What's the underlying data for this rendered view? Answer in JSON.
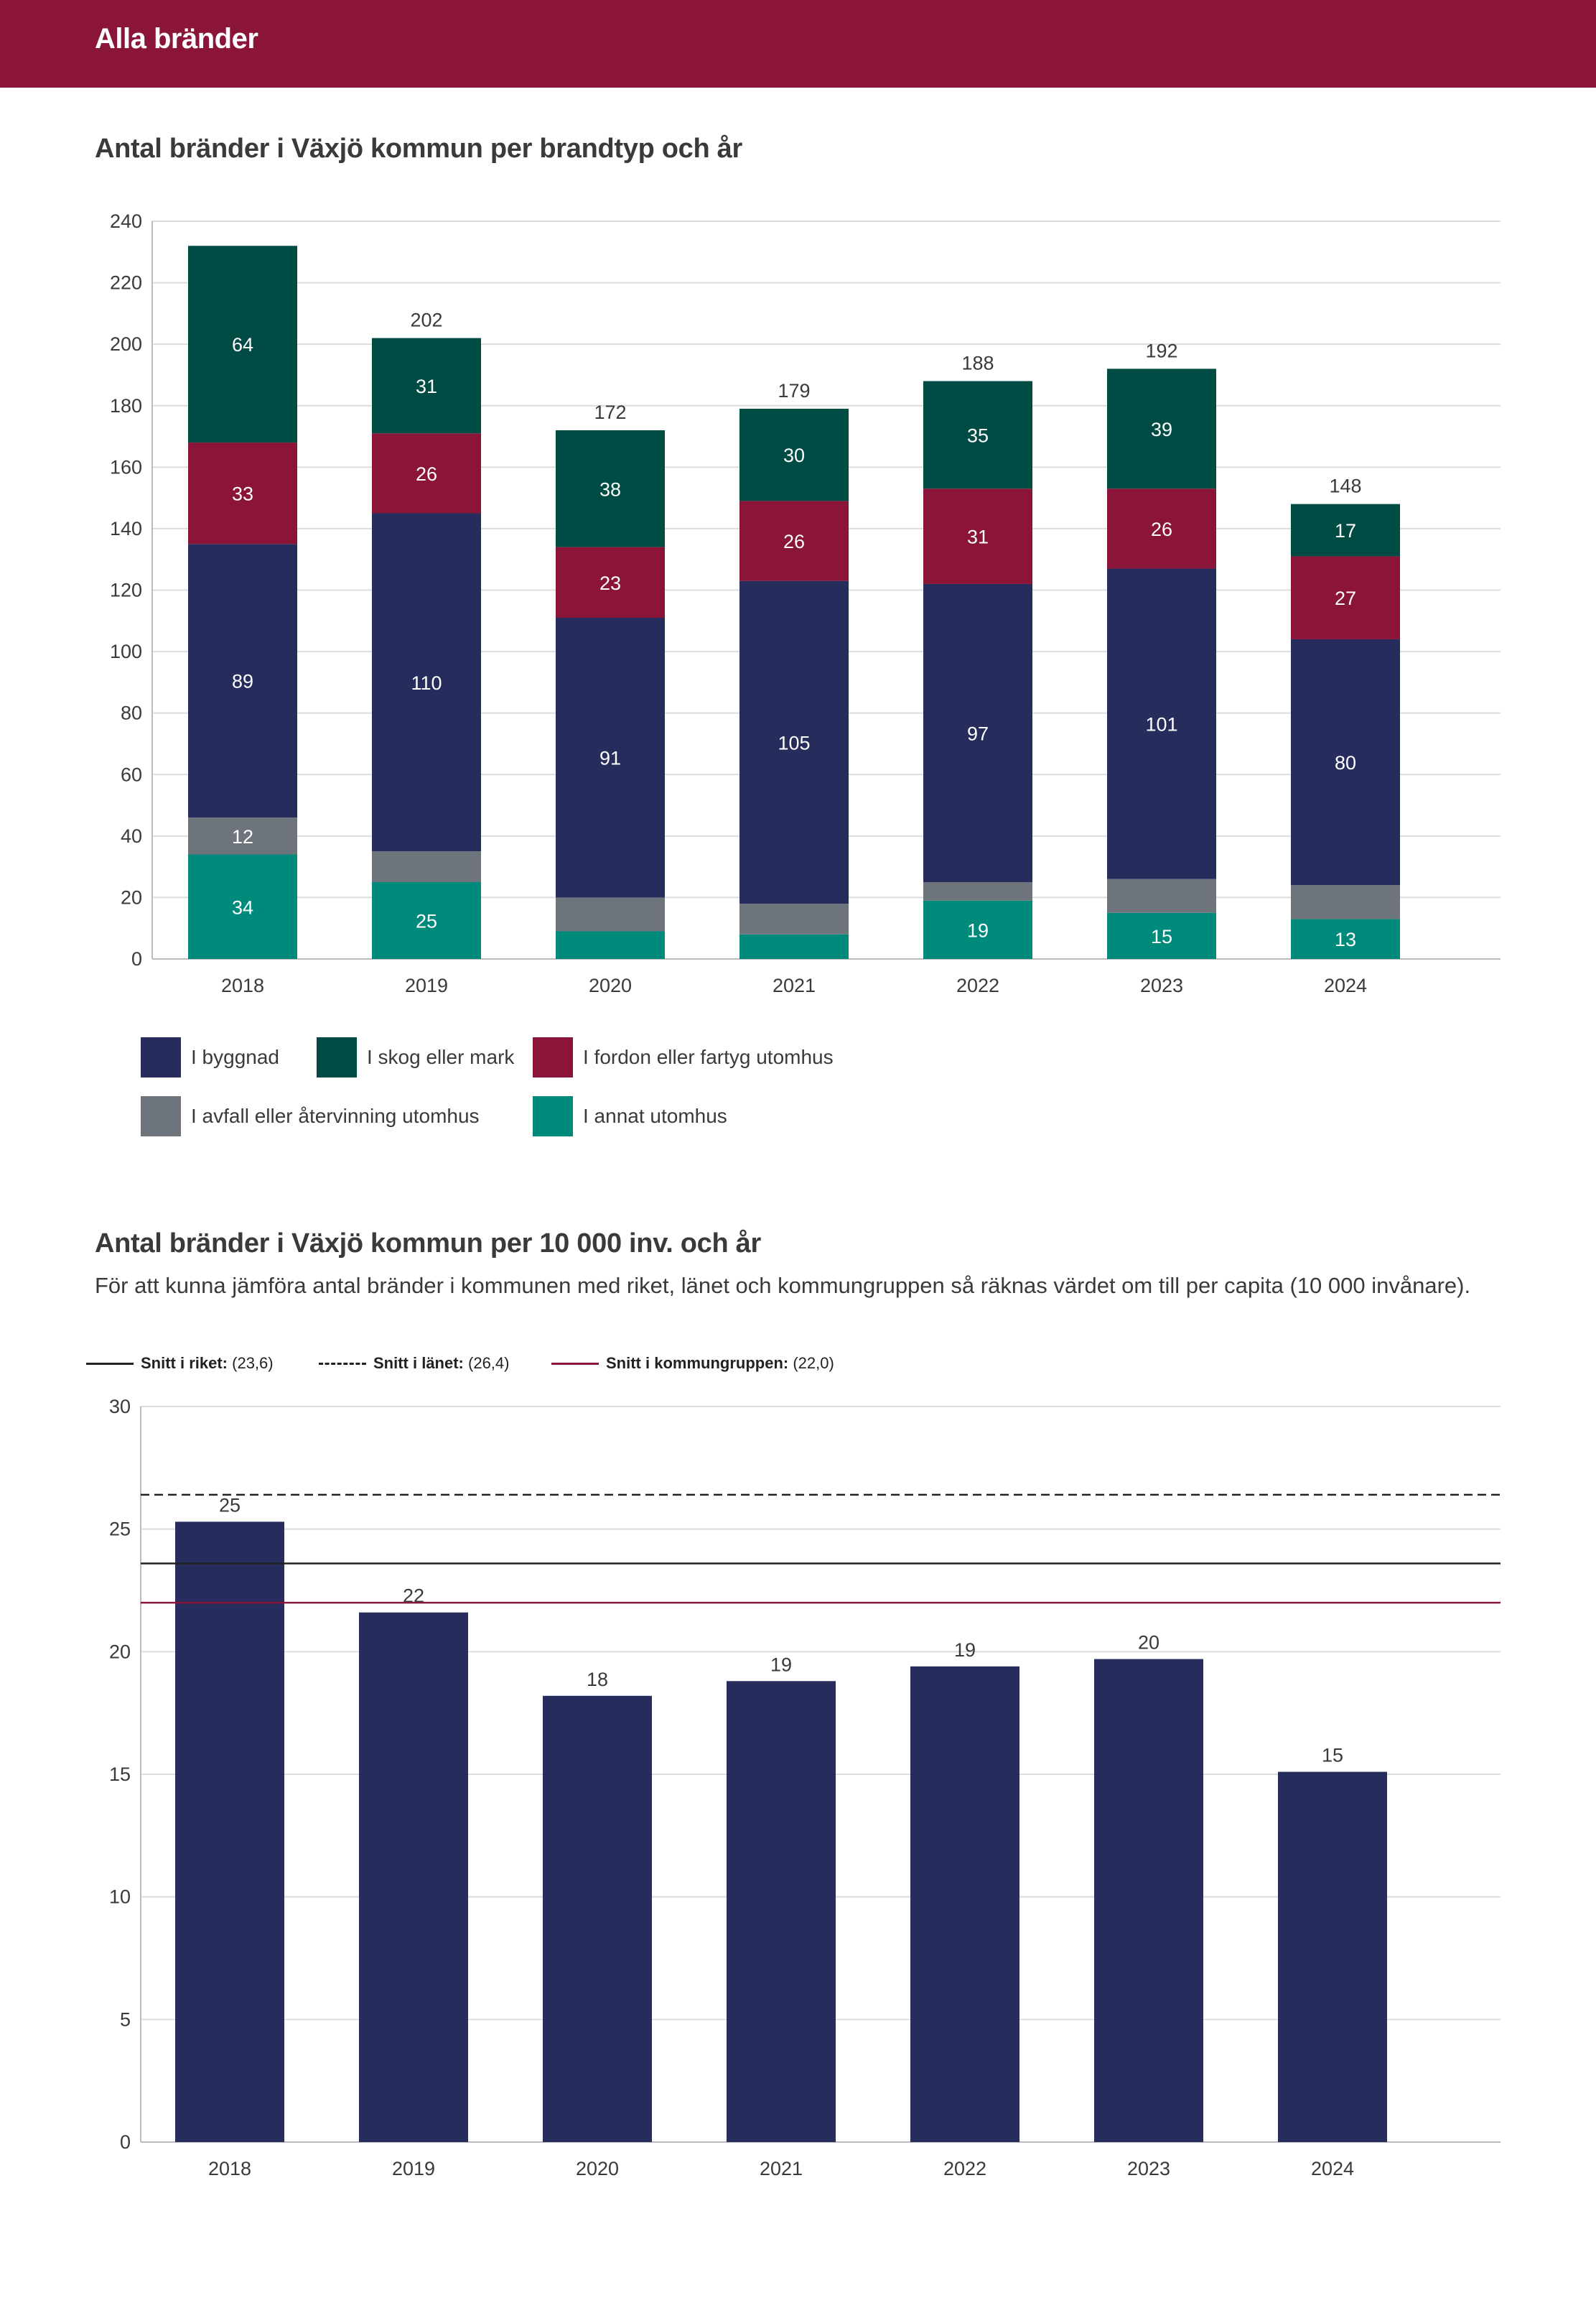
{
  "header": {
    "title": "Alla bränder"
  },
  "chart1": {
    "title": "Antal bränder i Växjö kommun per brandtyp och år"
  },
  "chart2": {
    "title": "Antal bränder i Växjö kommun per 10 000 inv. och år",
    "subtitle": "För att kunna jämföra antal bränder i kommunen med riket, länet och kommungruppen så räknas värdet om till per capita (10 000 invånare)."
  },
  "colors": {
    "header": "#8a1538",
    "byggnad": "#262c5c",
    "skog": "#004c45",
    "fordon": "#8a1538",
    "avfall": "#6e747c",
    "annat": "#008a7c",
    "grid": "#dcdcdc",
    "kommungrupp": "#8a1538"
  },
  "chart_data": [
    {
      "type": "bar",
      "stacked": true,
      "categories": [
        "2018",
        "2019",
        "2020",
        "2021",
        "2022",
        "2023",
        "2024"
      ],
      "series": [
        {
          "name": "I annat utomhus",
          "color": "#008a7c",
          "values": [
            34,
            25,
            9,
            8,
            19,
            15,
            13
          ],
          "labels": [
            "34",
            "25",
            "",
            "",
            "19",
            "15",
            "13"
          ]
        },
        {
          "name": "I avfall eller återvinning utomhus",
          "color": "#6e747c",
          "values": [
            12,
            10,
            11,
            10,
            6,
            11,
            11
          ],
          "labels": [
            "12",
            "",
            "",
            "",
            "",
            "",
            ""
          ]
        },
        {
          "name": "I byggnad",
          "color": "#262c5c",
          "values": [
            89,
            110,
            91,
            105,
            97,
            101,
            80
          ],
          "labels": [
            "89",
            "110",
            "91",
            "105",
            "97",
            "101",
            "80"
          ]
        },
        {
          "name": "I fordon eller fartyg utomhus",
          "color": "#8a1538",
          "values": [
            33,
            26,
            23,
            26,
            31,
            26,
            27
          ],
          "labels": [
            "33",
            "26",
            "23",
            "26",
            "31",
            "26",
            "27"
          ]
        },
        {
          "name": "I skog eller mark",
          "color": "#004c45",
          "values": [
            64,
            31,
            38,
            30,
            35,
            39,
            17
          ],
          "labels": [
            "64",
            "31",
            "38",
            "30",
            "35",
            "39",
            "17"
          ]
        }
      ],
      "totals": [
        "",
        "202",
        "172",
        "179",
        "188",
        "192",
        "148"
      ],
      "ylim": [
        0,
        240
      ],
      "yticks": [
        0,
        20,
        40,
        60,
        80,
        100,
        120,
        140,
        160,
        180,
        200,
        220,
        240
      ],
      "legend": [
        {
          "name": "I byggnad",
          "color": "#262c5c"
        },
        {
          "name": "I skog eller mark",
          "color": "#004c45"
        },
        {
          "name": "I fordon eller fartyg utomhus",
          "color": "#8a1538"
        },
        {
          "name": "I avfall eller återvinning utomhus",
          "color": "#6e747c"
        },
        {
          "name": "I annat utomhus",
          "color": "#008a7c"
        }
      ],
      "legend_position": "bottom",
      "grid": true
    },
    {
      "type": "bar",
      "categories": [
        "2018",
        "2019",
        "2020",
        "2021",
        "2022",
        "2023",
        "2024"
      ],
      "values": [
        25.3,
        21.6,
        18.2,
        18.8,
        19.4,
        19.7,
        15.1
      ],
      "labels": [
        "25",
        "22",
        "18",
        "19",
        "19",
        "20",
        "15"
      ],
      "color": "#262c5c",
      "ylim": [
        0,
        30
      ],
      "yticks": [
        0,
        5,
        10,
        15,
        20,
        25,
        30
      ],
      "reference_lines": [
        {
          "label": "Snitt i riket:",
          "value_text": "(23,6)",
          "value": 23.6,
          "style": "solid",
          "color": "#222222"
        },
        {
          "label": "Snitt i länet:",
          "value_text": "(26,4)",
          "value": 26.4,
          "style": "dashed",
          "color": "#222222"
        },
        {
          "label": "Snitt i kommungruppen:",
          "value_text": "(22,0)",
          "value": 22.0,
          "style": "solid",
          "color": "#8a1538"
        }
      ],
      "legend_position": "top-left",
      "grid": true
    }
  ]
}
